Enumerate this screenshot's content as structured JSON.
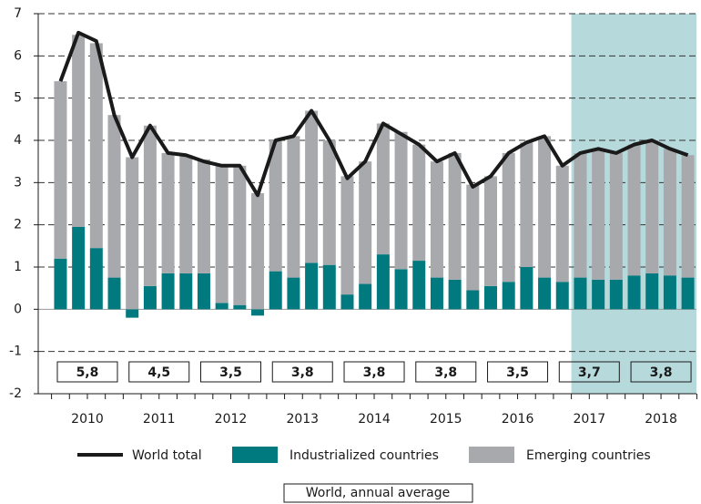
{
  "chart_data": {
    "type": "bar",
    "stacked": true,
    "years": [
      "2010",
      "2011",
      "2012",
      "2013",
      "2014",
      "2015",
      "2016",
      "2017",
      "2018"
    ],
    "periods_per_year": 4,
    "ylim": [
      -2,
      7
    ],
    "yticks": [
      -2,
      -1,
      0,
      1,
      2,
      3,
      4,
      5,
      6,
      7
    ],
    "grid": true,
    "shaded_from_index": 29,
    "shade_color": "#b6d9dc",
    "series": [
      {
        "name": "World total",
        "type": "line",
        "color": "#1a1a1a",
        "values": [
          5.4,
          6.55,
          6.35,
          4.6,
          3.6,
          4.35,
          3.7,
          3.65,
          3.5,
          3.4,
          3.4,
          2.7,
          4.0,
          4.1,
          4.7,
          4.0,
          3.1,
          3.5,
          4.4,
          4.15,
          3.9,
          3.5,
          3.7,
          2.9,
          3.15,
          3.7,
          3.95,
          4.1,
          3.4,
          3.7,
          3.8,
          3.7,
          3.9,
          4.0,
          3.8,
          3.65
        ]
      },
      {
        "name": "Industrialized countries",
        "type": "bar",
        "color": "#00797f",
        "values": [
          1.2,
          1.95,
          1.45,
          0.75,
          -0.2,
          0.55,
          0.85,
          0.85,
          0.85,
          0.15,
          0.1,
          -0.15,
          0.9,
          0.75,
          1.1,
          1.05,
          0.35,
          0.6,
          1.3,
          0.95,
          1.15,
          0.75,
          0.7,
          0.45,
          0.55,
          0.65,
          1.0,
          0.75,
          0.65,
          0.75,
          0.7,
          0.7,
          0.8,
          0.85,
          0.8,
          0.75
        ]
      },
      {
        "name": "Emerging countries",
        "type": "bar",
        "color": "#a7a9ac",
        "values": [
          4.2,
          4.55,
          4.85,
          3.85,
          3.6,
          3.8,
          2.85,
          2.8,
          2.7,
          3.25,
          3.3,
          2.75,
          3.1,
          3.35,
          3.6,
          2.95,
          2.8,
          2.9,
          3.1,
          3.25,
          2.75,
          2.75,
          3.0,
          2.5,
          2.6,
          3.05,
          2.95,
          3.35,
          2.75,
          2.95,
          3.1,
          3.0,
          3.1,
          3.15,
          3.0,
          2.9
        ]
      }
    ],
    "annual_average": {
      "name": "World, annual average",
      "values": [
        5.8,
        4.5,
        3.5,
        3.8,
        3.8,
        3.8,
        3.5,
        3.7,
        3.8
      ],
      "value_labels": [
        "5,8",
        "4,5",
        "3,5",
        "3,8",
        "3,8",
        "3,8",
        "3,5",
        "3,7",
        "3,8"
      ]
    }
  }
}
